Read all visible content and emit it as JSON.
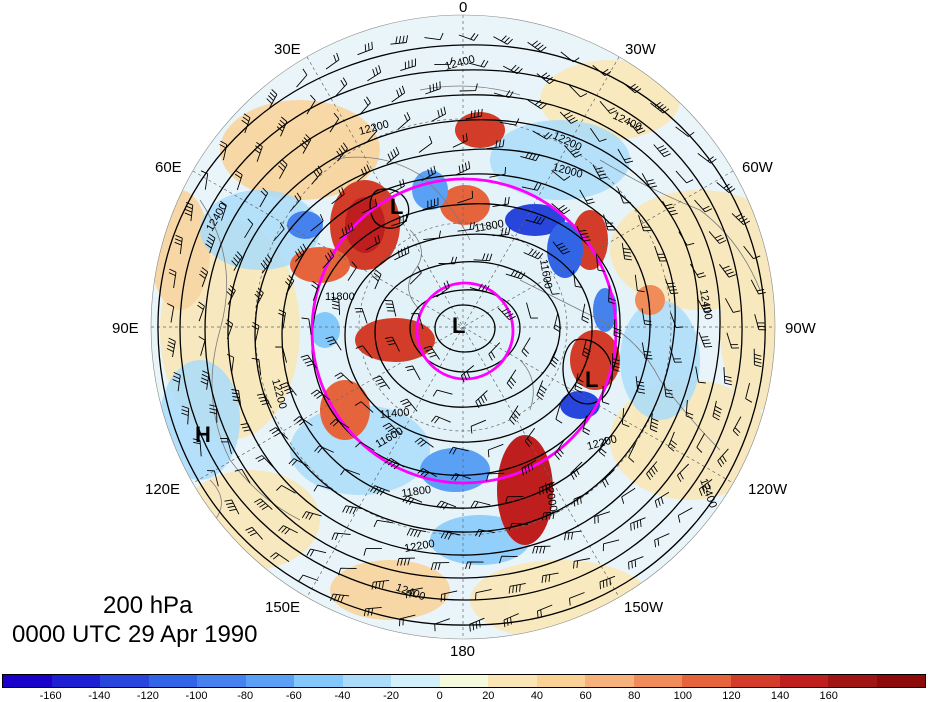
{
  "map": {
    "lon_labels": {
      "n0": "0",
      "n30e": "30E",
      "n30w": "30W",
      "n60e": "60E",
      "n60w": "60W",
      "n90e": "90E",
      "n90w": "90W",
      "n120e": "120E",
      "n120w": "120W",
      "n150e": "150E",
      "n150w": "150W",
      "n180": "180"
    },
    "pressure_centers": [
      {
        "type": "L",
        "label": "L"
      },
      {
        "type": "L",
        "label": "L"
      },
      {
        "type": "L",
        "label": "L"
      },
      {
        "type": "H",
        "label": "H"
      }
    ],
    "contour_labels": [
      "12400",
      "12400",
      "12400",
      "12400",
      "12400",
      "12200",
      "12200",
      "12200",
      "12200",
      "12000",
      "12000",
      "11800",
      "11800",
      "11800",
      "11600",
      "11600",
      "11400",
      "12400",
      "12200"
    ],
    "contour_colors": {
      "height_contours": "#000000",
      "circles": "#ff00ff"
    },
    "title": {
      "level": "200 hPa",
      "time": "0000 UTC 29 Apr 1990"
    }
  },
  "colorbar": {
    "colors": [
      "#1a00c8",
      "#1e1ed2",
      "#2846dc",
      "#3264e6",
      "#4682ee",
      "#5aa0f4",
      "#82c8fa",
      "#aadcfa",
      "#d2f0fa",
      "#f5fadc",
      "#fae6b4",
      "#fad296",
      "#f6b27a",
      "#f08c5a",
      "#e6643c",
      "#d23c28",
      "#be1e1e",
      "#a01414",
      "#8c0a0a"
    ],
    "tick_labels": [
      "-160",
      "-140",
      "-120",
      "-100",
      "-80",
      "-60",
      "-40",
      "-20",
      "0",
      "20",
      "40",
      "60",
      "80",
      "100",
      "120",
      "140",
      "160"
    ]
  }
}
